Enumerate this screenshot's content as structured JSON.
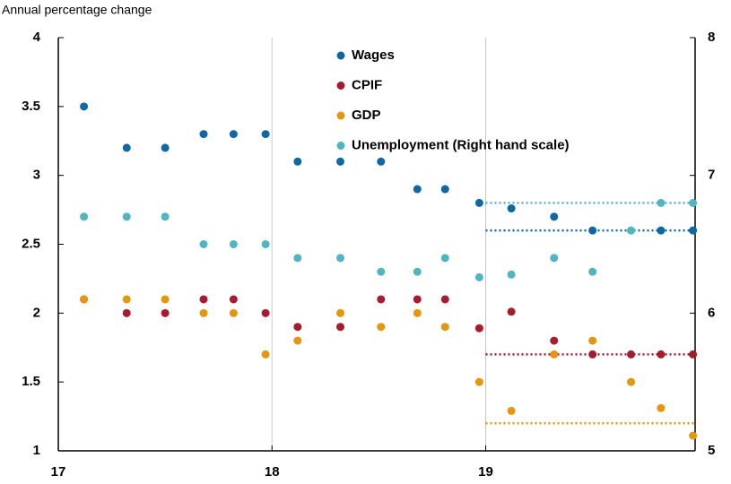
{
  "chart_data": {
    "type": "scatter",
    "y_label": "Annual percentage change",
    "xlim": [
      17,
      19.98
    ],
    "xticks": [
      17,
      18,
      19
    ],
    "ylim": [
      1,
      4
    ],
    "yticks": [
      1,
      1.5,
      2,
      2.5,
      3,
      3.5,
      4
    ],
    "y2lim": [
      5,
      8
    ],
    "y2ticks": [
      5,
      6,
      7,
      8
    ],
    "grid": "x",
    "dotted_x": [
      19,
      19.98
    ],
    "series": [
      {
        "name": "Wages",
        "color": "#0f68a5",
        "x": [
          17.12,
          17.32,
          17.5,
          17.68,
          17.82,
          17.97,
          18.12,
          18.32,
          18.51,
          18.68,
          18.81,
          18.97,
          19.12,
          19.32,
          19.5,
          19.82,
          19.97
        ],
        "values": [
          3.5,
          3.2,
          3.2,
          3.3,
          3.3,
          3.3,
          3.1,
          3.1,
          3.1,
          2.9,
          2.9,
          2.8,
          2.76,
          2.7,
          2.6,
          2.6,
          2.6
        ],
        "dotted_level": 2.6
      },
      {
        "name": "CPIF",
        "color": "#a61b2e",
        "x": [
          17.12,
          17.32,
          17.5,
          17.68,
          17.82,
          17.97,
          18.12,
          18.32,
          18.51,
          18.68,
          18.81,
          18.97,
          19.12,
          19.32,
          19.5,
          19.68,
          19.82,
          19.97
        ],
        "values": [
          2.1,
          2.0,
          2.0,
          2.1,
          2.1,
          2.0,
          1.9,
          1.9,
          2.1,
          2.1,
          2.1,
          1.89,
          2.01,
          1.8,
          1.7,
          1.7,
          1.7,
          1.7
        ],
        "dotted_level": 1.7
      },
      {
        "name": "GDP",
        "color": "#e5960f",
        "x": [
          17.12,
          17.32,
          17.5,
          17.68,
          17.82,
          17.97,
          18.12,
          18.32,
          18.51,
          18.68,
          18.81,
          18.97,
          19.12,
          19.32,
          19.5,
          19.68,
          19.82,
          19.97
        ],
        "values": [
          2.1,
          2.1,
          2.1,
          2.0,
          2.0,
          1.7,
          1.8,
          2.0,
          1.9,
          2.0,
          1.9,
          1.5,
          1.29,
          1.7,
          1.8,
          1.5,
          1.31,
          1.11
        ],
        "dotted_level": 1.2
      },
      {
        "name": "Unemployment (Right hand scale)",
        "color": "#4fb5c1",
        "axis": "y2",
        "x": [
          17.12,
          17.32,
          17.5,
          17.68,
          17.82,
          17.97,
          18.12,
          18.32,
          18.51,
          18.68,
          18.81,
          18.97,
          19.12,
          19.32,
          19.5,
          19.68,
          19.82,
          19.97
        ],
        "values": [
          6.7,
          6.7,
          6.7,
          6.5,
          6.5,
          6.5,
          6.4,
          6.4,
          6.3,
          6.3,
          6.4,
          6.26,
          6.28,
          6.4,
          6.3,
          6.6,
          6.8,
          6.8
        ],
        "dotted_level": 6.8
      }
    ]
  }
}
